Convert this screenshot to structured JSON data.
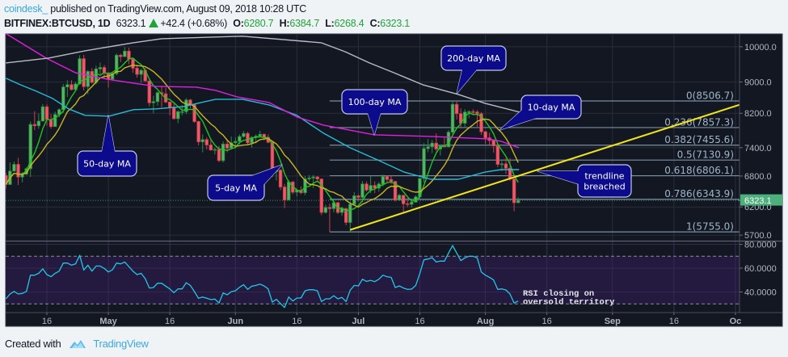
{
  "header": {
    "publisher": "coindesk_",
    "published_text": "published on TradingView.com, August 09, 2018 10:28 UTC",
    "symbol": "BITFINEX:BTCUSD, 1D",
    "last_price": "6323.1",
    "change": "+42.4 (+0.68%)",
    "change_direction": "up",
    "ohlc": [
      {
        "label": "O:",
        "value": "6280.7"
      },
      {
        "label": "H:",
        "value": "6384.7"
      },
      {
        "label": "L:",
        "value": "6268.4"
      },
      {
        "label": "C:",
        "value": "6323.1"
      }
    ]
  },
  "footer": {
    "created_with": "Created with",
    "brand": "TradingView",
    "logo_icon": "tradingview-logo-icon"
  },
  "chart_data": {
    "type": "candlestick",
    "title": "BITFINEX:BTCUSD, 1D",
    "date_start": "2018-04-06",
    "interval": "1D",
    "yscale": "log",
    "xlim": [
      -0.06,
      179.0
    ],
    "ylim": [
      5620,
      10390
    ],
    "grid": true,
    "current_price": {
      "value": 6323.1,
      "label": "6323.1",
      "color": "#4caf7c"
    },
    "price_ticks": [
      {
        "value": 10000,
        "label": "10000.0"
      },
      {
        "value": 9000,
        "label": "9000.0"
      },
      {
        "value": 8200,
        "label": "8200.0"
      },
      {
        "value": 7400,
        "label": "7400.0"
      },
      {
        "value": 6800,
        "label": "6800.0"
      },
      {
        "value": 6200,
        "label": "6200.0"
      },
      {
        "value": 5700,
        "label": "5700.0"
      }
    ],
    "time_ticks": [
      {
        "i": 10,
        "label": "16"
      },
      {
        "i": 25,
        "label": "May"
      },
      {
        "i": 40,
        "label": "16"
      },
      {
        "i": 56,
        "label": "Jun"
      },
      {
        "i": 71,
        "label": "16"
      },
      {
        "i": 86,
        "label": "Jul"
      },
      {
        "i": 101,
        "label": "16"
      },
      {
        "i": 117,
        "label": "Aug"
      },
      {
        "i": 132,
        "label": "16"
      },
      {
        "i": 148,
        "label": "Sep"
      },
      {
        "i": 163,
        "label": "16"
      },
      {
        "i": 178,
        "label": "Oc"
      }
    ],
    "colors": {
      "background": "#131722",
      "grid": "#2a2e39",
      "up_fill": "#55b565",
      "up_border": "#2f8a40",
      "down_fill": "#ef5a68",
      "down_border": "#c8404e",
      "axis_text": "#b2b5be"
    },
    "ohlc": [
      [
        6810,
        6860,
        6550,
        6630
      ],
      [
        6630,
        7080,
        6620,
        6900
      ],
      [
        6900,
        7100,
        6890,
        7040
      ],
      [
        7040,
        7180,
        6620,
        6780
      ],
      [
        6780,
        6880,
        6670,
        6840
      ],
      [
        6840,
        6980,
        6820,
        6950
      ],
      [
        6950,
        8000,
        6780,
        7930
      ],
      [
        7930,
        8250,
        7800,
        7900
      ],
      [
        7900,
        8190,
        7830,
        8010
      ],
      [
        8010,
        8430,
        8010,
        8360
      ],
      [
        8360,
        8420,
        7900,
        8050
      ],
      [
        8050,
        8180,
        7830,
        7880
      ],
      [
        7880,
        8240,
        7880,
        8170
      ],
      [
        8170,
        8320,
        8100,
        8290
      ],
      [
        8290,
        8950,
        8210,
        8870
      ],
      [
        8870,
        9050,
        8610,
        8930
      ],
      [
        8930,
        9050,
        8780,
        8800
      ],
      [
        8800,
        9000,
        8790,
        8950
      ],
      [
        8950,
        9750,
        8920,
        9650
      ],
      [
        9650,
        9760,
        8780,
        8880
      ],
      [
        8880,
        9330,
        8680,
        9290
      ],
      [
        9290,
        9380,
        8960,
        8990
      ],
      [
        8990,
        9450,
        8940,
        9360
      ],
      [
        9360,
        9540,
        9210,
        9400
      ],
      [
        9400,
        9470,
        9110,
        9250
      ],
      [
        9250,
        9270,
        8850,
        9080
      ],
      [
        9080,
        9250,
        9030,
        9230
      ],
      [
        9230,
        9800,
        9180,
        9750
      ],
      [
        9750,
        9790,
        9550,
        9710
      ],
      [
        9710,
        9990,
        9700,
        9870
      ],
      [
        9870,
        9970,
        9490,
        9640
      ],
      [
        9640,
        9670,
        9250,
        9380
      ],
      [
        9380,
        9480,
        9120,
        9210
      ],
      [
        9210,
        9370,
        8980,
        9320
      ],
      [
        9320,
        9390,
        9010,
        9030
      ],
      [
        9030,
        9040,
        8370,
        8460
      ],
      [
        8460,
        8640,
        8200,
        8490
      ],
      [
        8490,
        8750,
        8390,
        8720
      ],
      [
        8720,
        8880,
        8350,
        8690
      ],
      [
        8690,
        8850,
        8450,
        8480
      ],
      [
        8480,
        8490,
        8150,
        8340
      ],
      [
        8340,
        8470,
        8050,
        8070
      ],
      [
        8070,
        8270,
        7960,
        8240
      ],
      [
        8240,
        8400,
        8150,
        8240
      ],
      [
        8240,
        8580,
        8180,
        8530
      ],
      [
        8530,
        8560,
        8330,
        8410
      ],
      [
        8410,
        8420,
        7970,
        8000
      ],
      [
        8000,
        8020,
        7450,
        7530
      ],
      [
        7530,
        7700,
        7300,
        7580
      ],
      [
        7580,
        7630,
        7360,
        7460
      ],
      [
        7460,
        7600,
        7330,
        7350
      ],
      [
        7350,
        7400,
        7250,
        7360
      ],
      [
        7360,
        7440,
        7090,
        7120
      ],
      [
        7120,
        7540,
        7080,
        7480
      ],
      [
        7480,
        7580,
        7300,
        7390
      ],
      [
        7390,
        7650,
        7380,
        7510
      ],
      [
        7510,
        7630,
        7380,
        7540
      ],
      [
        7540,
        7700,
        7470,
        7650
      ],
      [
        7650,
        7780,
        7620,
        7720
      ],
      [
        7720,
        7760,
        7470,
        7510
      ],
      [
        7510,
        7660,
        7400,
        7630
      ],
      [
        7630,
        7700,
        7500,
        7660
      ],
      [
        7660,
        7780,
        7640,
        7700
      ],
      [
        7700,
        7720,
        7560,
        7630
      ],
      [
        7630,
        7700,
        7500,
        7520
      ],
      [
        7520,
        7530,
        6780,
        6890
      ],
      [
        6890,
        6990,
        6710,
        6920
      ],
      [
        6920,
        6940,
        6520,
        6580
      ],
      [
        6580,
        6640,
        6180,
        6330
      ],
      [
        6330,
        6720,
        6320,
        6680
      ],
      [
        6680,
        6700,
        6440,
        6480
      ],
      [
        6480,
        6560,
        6400,
        6520
      ],
      [
        6520,
        6590,
        6440,
        6470
      ],
      [
        6470,
        6800,
        6420,
        6740
      ],
      [
        6740,
        6820,
        6690,
        6760
      ],
      [
        6760,
        6820,
        6560,
        6780
      ],
      [
        6780,
        6800,
        6680,
        6740
      ],
      [
        6740,
        6750,
        6050,
        6100
      ],
      [
        6100,
        6240,
        6080,
        6190
      ],
      [
        6190,
        6260,
        5760,
        6170
      ],
      [
        6170,
        6340,
        6100,
        6280
      ],
      [
        6280,
        6290,
        6070,
        6100
      ],
      [
        6100,
        6200,
        6040,
        6170
      ],
      [
        6170,
        6180,
        5870,
        5920
      ],
      [
        5920,
        6300,
        5755,
        6250
      ],
      [
        6250,
        6480,
        6240,
        6410
      ],
      [
        6410,
        6440,
        6300,
        6380
      ],
      [
        6380,
        6700,
        6290,
        6640
      ],
      [
        6640,
        6690,
        6490,
        6520
      ],
      [
        6520,
        6800,
        6460,
        6610
      ],
      [
        6610,
        6690,
        6460,
        6560
      ],
      [
        6560,
        6680,
        6490,
        6640
      ],
      [
        6640,
        6830,
        6590,
        6790
      ],
      [
        6790,
        6810,
        6670,
        6730
      ],
      [
        6730,
        6800,
        6640,
        6690
      ],
      [
        6690,
        6700,
        6300,
        6330
      ],
      [
        6330,
        6450,
        6310,
        6420
      ],
      [
        6420,
        6420,
        6100,
        6260
      ],
      [
        6260,
        6370,
        6200,
        6250
      ],
      [
        6250,
        6340,
        6190,
        6290
      ],
      [
        6290,
        6420,
        6280,
        6390
      ],
      [
        6390,
        6760,
        6360,
        6750
      ],
      [
        6750,
        7500,
        6670,
        7380
      ],
      [
        7380,
        7590,
        7300,
        7420
      ],
      [
        7420,
        7570,
        7280,
        7500
      ],
      [
        7500,
        7720,
        7320,
        7370
      ],
      [
        7370,
        7460,
        7230,
        7440
      ],
      [
        7440,
        7620,
        7410,
        7420
      ],
      [
        7420,
        7800,
        7410,
        7750
      ],
      [
        7750,
        8500,
        7700,
        8420
      ],
      [
        8420,
        8490,
        8050,
        8190
      ],
      [
        8190,
        8320,
        7860,
        7960
      ],
      [
        7960,
        8300,
        7850,
        8230
      ],
      [
        8230,
        8270,
        8080,
        8240
      ],
      [
        8240,
        8300,
        8150,
        8230
      ],
      [
        8230,
        8280,
        7880,
        8190
      ],
      [
        8190,
        8230,
        7690,
        7760
      ],
      [
        7760,
        7780,
        7480,
        7620
      ],
      [
        7620,
        7740,
        7470,
        7560
      ],
      [
        7560,
        7580,
        7290,
        7440
      ],
      [
        7440,
        7500,
        6980,
        7040
      ],
      [
        7040,
        7110,
        6900,
        7050
      ],
      [
        7050,
        7170,
        6840,
        6960
      ],
      [
        6960,
        7170,
        6700,
        6740
      ],
      [
        6740,
        6750,
        6120,
        6280
      ],
      [
        6280.7,
        6384.7,
        6268.4,
        6323.1
      ]
    ],
    "moving_averages": [
      {
        "name": "5-day MA",
        "period": 5,
        "type": "computed",
        "color": "#1ec51e"
      },
      {
        "name": "10-day MA",
        "period": 10,
        "type": "computed",
        "color": "#c9b522"
      },
      {
        "name": "50-day MA",
        "period": 50,
        "color": "#27bcd6",
        "points": [
          [
            0,
            9102
          ],
          [
            3.5,
            8928
          ],
          [
            7.4,
            8758
          ],
          [
            11.4,
            8570
          ],
          [
            15.3,
            8307
          ],
          [
            19.3,
            8149
          ],
          [
            25.2,
            8129
          ],
          [
            31.1,
            8287
          ],
          [
            36.6,
            8307
          ],
          [
            43.3,
            8367
          ],
          [
            51.2,
            8550
          ],
          [
            57.7,
            8550
          ],
          [
            64.2,
            8407
          ],
          [
            71,
            8149
          ],
          [
            77.5,
            7727
          ],
          [
            84,
            7397
          ],
          [
            90.7,
            7134
          ],
          [
            97.2,
            6880
          ],
          [
            103.7,
            6733
          ],
          [
            110.4,
            6733
          ],
          [
            116.9,
            6880
          ],
          [
            120.8,
            6931
          ],
          [
            125.2,
            6931
          ]
        ]
      },
      {
        "name": "100-day MA",
        "period": 100,
        "color": "#e020e0",
        "points": [
          [
            0,
            10400
          ],
          [
            9.8,
            9668
          ],
          [
            16.9,
            9257
          ],
          [
            24.6,
            9080
          ],
          [
            31.1,
            8972
          ],
          [
            36.6,
            8885
          ],
          [
            46.5,
            8864
          ],
          [
            51.2,
            8780
          ],
          [
            56.4,
            8612
          ],
          [
            64.2,
            8468
          ],
          [
            71,
            8110
          ],
          [
            77.5,
            7915
          ],
          [
            89.9,
            7690
          ],
          [
            103.7,
            7653
          ],
          [
            117.5,
            7598
          ],
          [
            120.8,
            7543
          ],
          [
            125.2,
            7397
          ]
        ]
      },
      {
        "name": "200-day MA",
        "period": 200,
        "color": "#b8bcc6",
        "points": [
          [
            0,
            9530
          ],
          [
            10.4,
            9668
          ],
          [
            19.3,
            9880
          ],
          [
            31.1,
            10121
          ],
          [
            38,
            10244
          ],
          [
            57.7,
            10319
          ],
          [
            76.9,
            10121
          ],
          [
            82.8,
            9850
          ],
          [
            88.7,
            9530
          ],
          [
            94.6,
            9257
          ],
          [
            101.7,
            8928
          ],
          [
            110.4,
            8674
          ],
          [
            116.9,
            8448
          ],
          [
            120.8,
            8347
          ],
          [
            125.4,
            8227
          ]
        ]
      }
    ],
    "trendline": {
      "from": [
        84,
        5790
      ],
      "to": [
        179,
        8410
      ],
      "color": "#f2e51a"
    },
    "fibonacci": {
      "start_index": 79,
      "line_color": "#7a8fa3",
      "label_color": "#9fb4c9",
      "levels": [
        {
          "ratio": 0,
          "price": 8506.7,
          "label": "0(8506.7)"
        },
        {
          "ratio": 0.236,
          "price": 7857.3,
          "label": "0.236(7857.3)"
        },
        {
          "ratio": 0.382,
          "price": 7455.6,
          "label": "0.382(7455.6)"
        },
        {
          "ratio": 0.5,
          "price": 7130.9,
          "label": "0.5(7130.9)"
        },
        {
          "ratio": 0.618,
          "price": 6806.1,
          "label": "0.618(6806.1)"
        },
        {
          "ratio": 0.786,
          "price": 6343.9,
          "label": "0.786(6343.9)"
        },
        {
          "ratio": 1,
          "price": 5755.0,
          "label": "1(5755.0)"
        }
      ]
    },
    "annotations": [
      {
        "id": "ma50",
        "text": [
          "50-day MA"
        ],
        "tip": [
          25,
          8149
        ]
      },
      {
        "id": "ma5",
        "text": [
          "5-day MA"
        ],
        "tip": [
          67.4,
          7032
        ]
      },
      {
        "id": "ma100",
        "text": [
          "100-day MA"
        ],
        "tip": [
          89.9,
          7690
        ]
      },
      {
        "id": "ma200",
        "text": [
          "200-day MA"
        ],
        "tip": [
          110,
          8695
        ]
      },
      {
        "id": "ma10",
        "text": [
          "10-day MA"
        ],
        "tip": [
          120.5,
          7800
        ]
      },
      {
        "id": "trend",
        "text": [
          "trendline",
          "breached"
        ],
        "tip": [
          129.7,
          6898
        ]
      }
    ],
    "rsi": {
      "ylim": [
        22.7,
        82.4
      ],
      "overbought": 70,
      "oversold": 30,
      "color": "#22c7e8",
      "band_color": "#24193f",
      "ticks": [
        {
          "value": 80,
          "label": "80.0000"
        },
        {
          "value": 60,
          "label": "60.0000"
        },
        {
          "value": 40,
          "label": "40.0000"
        }
      ],
      "values": [
        34.2,
        38.3,
        40.5,
        38.3,
        38.8,
        40.5,
        54.1,
        54.1,
        55.7,
        59.5,
        54.6,
        52.8,
        55.7,
        57.5,
        64.3,
        64.3,
        62.5,
        63.6,
        70.8,
        58.4,
        62.5,
        57.5,
        61.8,
        61.8,
        59.8,
        56.8,
        58.6,
        64.3,
        63.6,
        65.2,
        61.4,
        57.5,
        54.6,
        55.7,
        51.2,
        43.3,
        43.7,
        47.3,
        47.3,
        44.9,
        42.6,
        39.4,
        42.6,
        42.6,
        47.8,
        45.5,
        40.3,
        34.7,
        35.8,
        34.7,
        33.6,
        34.0,
        30.8,
        39.2,
        37.6,
        40.3,
        41.0,
        43.9,
        46.2,
        42.2,
        44.9,
        45.5,
        46.6,
        45.1,
        42.6,
        31.5,
        33.8,
        30.2,
        27.0,
        35.8,
        32.4,
        34.9,
        34.9,
        41.0,
        41.9,
        41.9,
        41.0,
        32.0,
        34.2,
        34.2,
        36.9,
        34.2,
        35.4,
        32.0,
        41.5,
        45.5,
        45.1,
        50.7,
        48.9,
        49.8,
        48.7,
        50.7,
        54.1,
        52.8,
        52.3,
        43.7,
        45.1,
        43.3,
        42.2,
        42.4,
        45.5,
        55.7,
        67.0,
        67.7,
        68.8,
        65.2,
        65.9,
        65.9,
        72.7,
        79.0,
        72.7,
        66.3,
        68.6,
        70.0,
        70.0,
        68.6,
        56.8,
        54.1,
        52.3,
        50.1,
        42.2,
        42.6,
        41.7,
        38.3,
        30.8,
        32.4
      ],
      "note": [
        "RSI closing on",
        "oversold territory"
      ]
    }
  }
}
